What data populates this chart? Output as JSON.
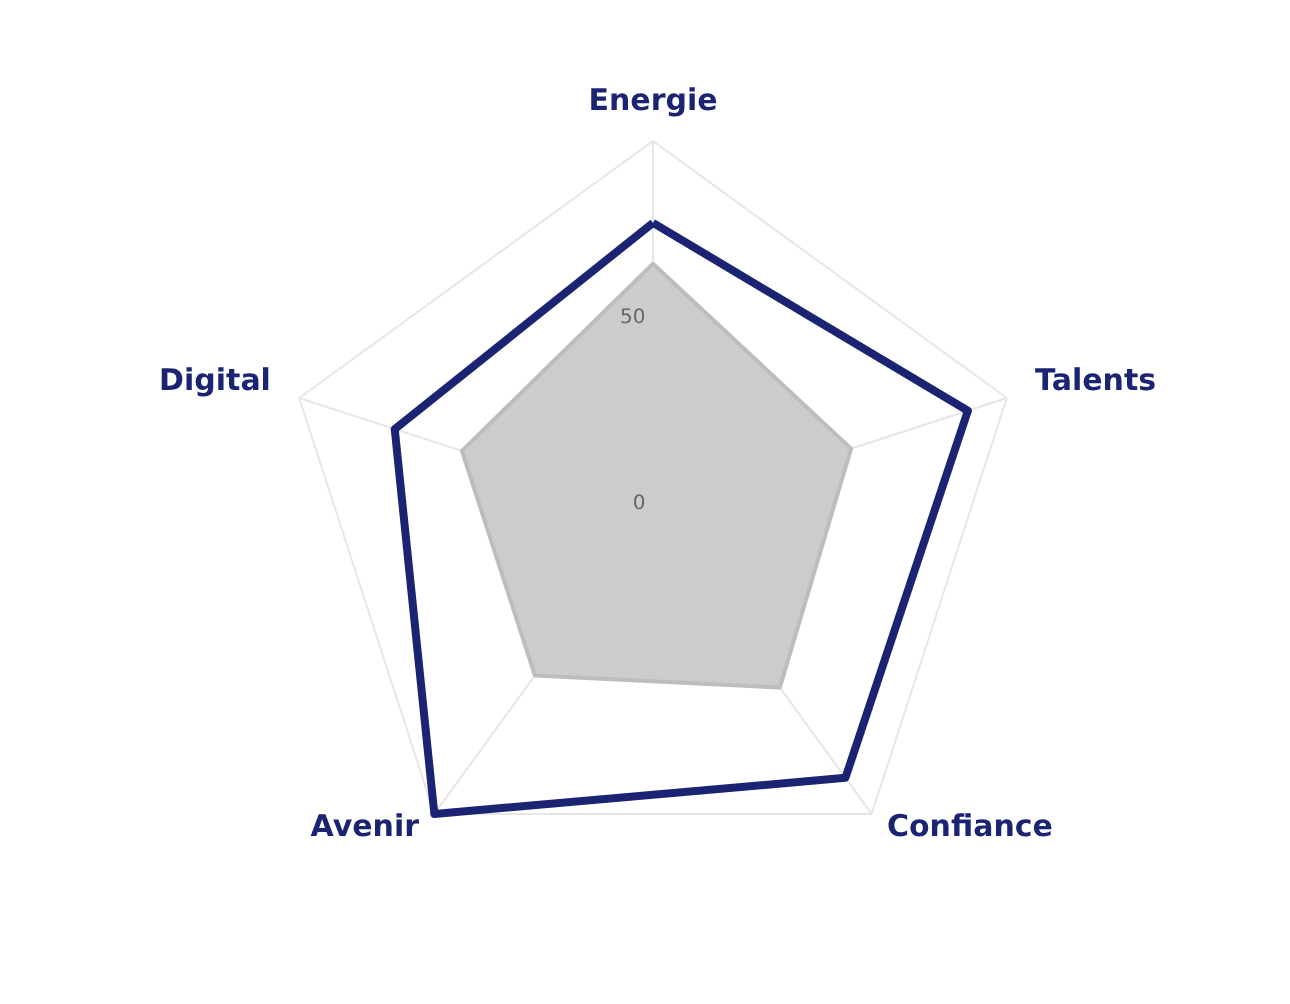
{
  "chart_data": {
    "type": "radar",
    "categories": [
      "Energie",
      "Talents",
      "Confiance",
      "Avenir",
      "Digital"
    ],
    "ylim": [
      0,
      100
    ],
    "yticks": [
      0,
      50
    ],
    "grid": true,
    "series": [
      {
        "type": "area",
        "color": "#cccccc",
        "values": [
          67,
          56,
          58,
          54,
          54
        ]
      },
      {
        "color": "#1a2472",
        "values": [
          78,
          89,
          88,
          100,
          73
        ]
      }
    ]
  }
}
